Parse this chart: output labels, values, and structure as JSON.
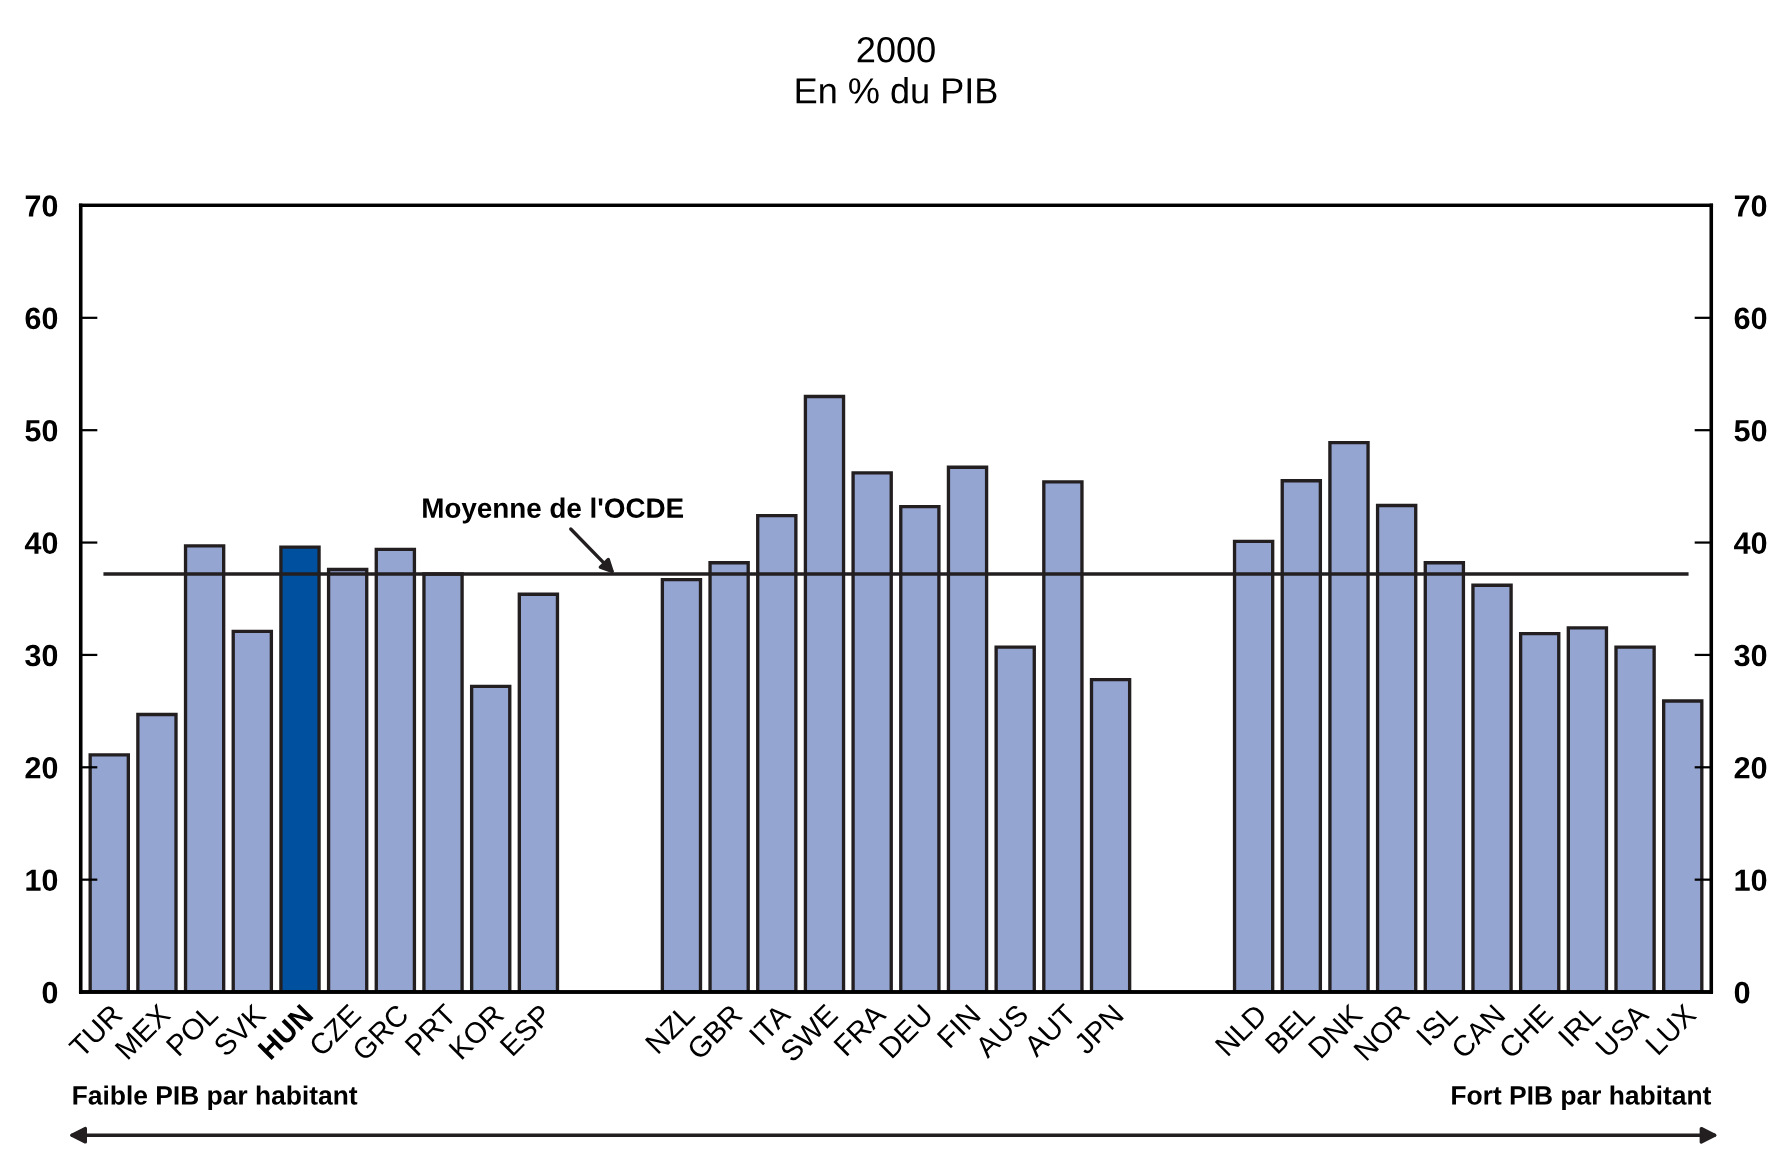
{
  "chart_data": {
    "type": "bar",
    "title": "2000",
    "subtitle": "En % du PIB",
    "categories": [
      "TUR",
      "MEX",
      "POL",
      "SVK",
      "HUN",
      "CZE",
      "GRC",
      "PRT",
      "KOR",
      "ESP",
      null,
      null,
      "NZL",
      "GBR",
      "ITA",
      "SWE",
      "FRA",
      "DEU",
      "FIN",
      "AUS",
      "AUT",
      "JPN",
      null,
      null,
      "NLD",
      "BEL",
      "DNK",
      "NOR",
      "ISL",
      "CAN",
      "CHE",
      "IRL",
      "USA",
      "LUX"
    ],
    "values": [
      21.1,
      24.7,
      39.7,
      32.1,
      39.6,
      37.6,
      39.4,
      37.2,
      27.2,
      35.4,
      null,
      null,
      36.7,
      38.2,
      42.4,
      53.0,
      46.2,
      43.2,
      46.7,
      30.7,
      45.4,
      27.8,
      null,
      null,
      40.1,
      45.5,
      48.9,
      43.3,
      38.2,
      36.2,
      31.9,
      32.4,
      30.7,
      25.9
    ],
    "colors": [
      "#95a5d1",
      "#95a5d1",
      "#95a5d1",
      "#95a5d1",
      "#0050a0",
      "#95a5d1",
      "#95a5d1",
      "#95a5d1",
      "#95a5d1",
      "#95a5d1",
      "#95a5d1",
      "#95a5d1",
      "#95a5d1",
      "#95a5d1",
      "#95a5d1",
      "#95a5d1",
      "#95a5d1",
      "#95a5d1",
      "#95a5d1",
      "#95a5d1",
      "#95a5d1",
      "#95a5d1",
      "#95a5d1",
      "#95a5d1",
      "#95a5d1",
      "#95a5d1",
      "#95a5d1",
      "#95a5d1",
      "#95a5d1",
      "#95a5d1",
      "#95a5d1",
      "#95a5d1",
      "#95a5d1",
      "#95a5d1"
    ],
    "ylim": [
      0,
      70
    ],
    "yticks": [
      0,
      10,
      20,
      30,
      40,
      50,
      60,
      70
    ],
    "y2lim": [
      0,
      70
    ],
    "y2ticks": [
      0,
      10,
      20,
      30,
      40,
      50,
      60,
      70
    ],
    "ref_lines": [
      {
        "axis": "y",
        "value": 37.2,
        "label": "Moyenne de l'OCDE",
        "color": "#231f20"
      }
    ],
    "annotations": [
      "Faible PIB par habitant",
      "Fort PIB par habitant"
    ],
    "grid": false
  }
}
